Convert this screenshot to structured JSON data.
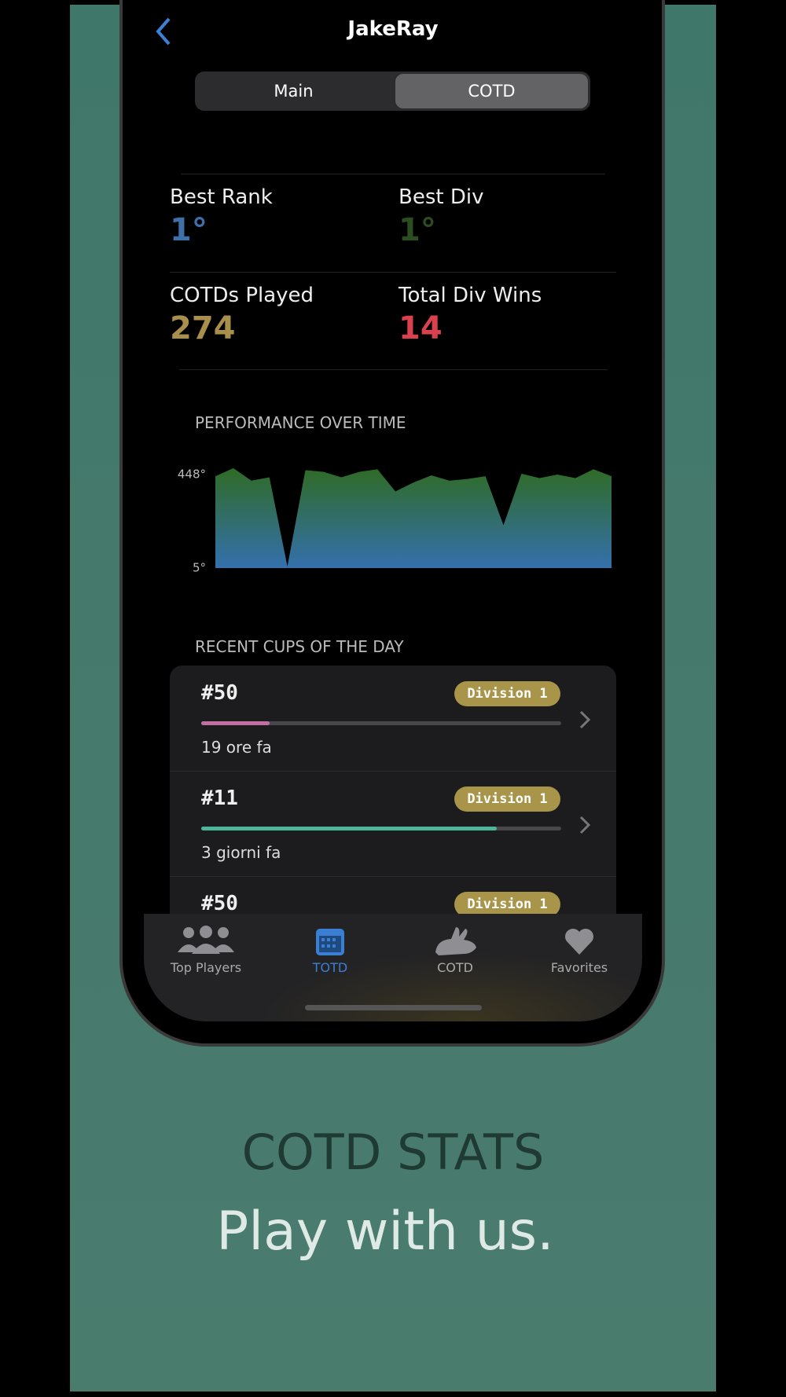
{
  "header": {
    "title": "JakeRay"
  },
  "segments": [
    "Main",
    "COTD"
  ],
  "stats": [
    {
      "label": "Best Rank",
      "value": "1°"
    },
    {
      "label": "Best Div",
      "value": "1°"
    },
    {
      "label": "COTDs Played",
      "value": "274"
    },
    {
      "label": "Total Div Wins",
      "value": "14"
    }
  ],
  "performance": {
    "type": "area",
    "title": "PERFORMANCE OVER TIME",
    "values": [
      440,
      478,
      419,
      435,
      13,
      469,
      461,
      435,
      461,
      473,
      368,
      410,
      444,
      419,
      427,
      440,
      208,
      452,
      431,
      448,
      431,
      473,
      440
    ],
    "ylim": [
      5,
      500
    ],
    "yticks": [
      {
        "value": 448,
        "label": "448°"
      },
      {
        "value": 5,
        "label": "5°"
      }
    ]
  },
  "recent": {
    "title": "RECENT CUPS OF THE DAY",
    "rows": [
      {
        "cup": "#50",
        "division": "Division 1",
        "progress": 0.19,
        "time": "19 ore fa"
      },
      {
        "cup": "#11",
        "division": "Division 1",
        "progress": 0.82,
        "time": "3 giorni fa"
      },
      {
        "cup": "#50",
        "division": "Division 1"
      }
    ]
  },
  "tab_bar": [
    "Top Players",
    "TOTD",
    "COTD",
    "Favorites"
  ],
  "promo": {
    "headline": "COTD STATS",
    "tagline": "Play with us."
  }
}
